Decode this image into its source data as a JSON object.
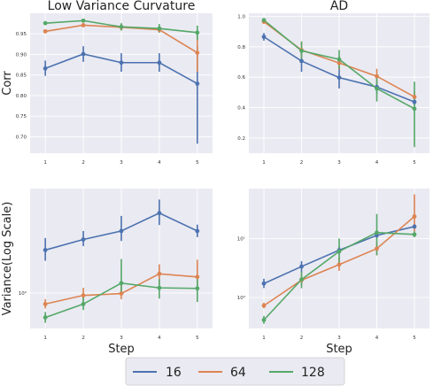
{
  "legend": {
    "entries": [
      {
        "label": "16",
        "color": "#4c72b0"
      },
      {
        "label": "64",
        "color": "#dd8452"
      },
      {
        "label": "128",
        "color": "#55a868"
      }
    ]
  },
  "chart_data": [
    {
      "id": "p1",
      "type": "line",
      "title": "Low Variance Curvature",
      "xlabel": "",
      "ylabel": "Corr",
      "x": [
        1,
        2,
        3,
        4,
        5
      ],
      "xlim": [
        0.6,
        5.4
      ],
      "ylim": [
        0.66,
        1.0
      ],
      "yscale": "linear",
      "yticks": [
        0.7,
        0.75,
        0.8,
        0.85,
        0.9,
        0.95
      ],
      "ytick_labels": [
        "0.70",
        "0.75",
        "0.80",
        "0.85",
        "0.90",
        "0.95"
      ],
      "grid": true,
      "series": [
        {
          "name": "16",
          "color": "#4c72b0",
          "values": [
            0.866,
            0.901,
            0.88,
            0.88,
            0.829
          ],
          "err_low": [
            0.848,
            0.882,
            0.858,
            0.858,
            0.683
          ],
          "err_high": [
            0.885,
            0.92,
            0.903,
            0.903,
            0.92
          ]
        },
        {
          "name": "64",
          "color": "#dd8452",
          "values": [
            0.956,
            0.971,
            0.966,
            0.96,
            0.904
          ],
          "err_low": [
            0.952,
            0.966,
            0.958,
            0.953,
            0.858
          ],
          "err_high": [
            0.96,
            0.976,
            0.974,
            0.967,
            0.948
          ]
        },
        {
          "name": "128",
          "color": "#55a868",
          "values": [
            0.976,
            0.982,
            0.967,
            0.963,
            0.953
          ],
          "err_low": [
            0.973,
            0.978,
            0.958,
            0.953,
            0.935
          ],
          "err_high": [
            0.979,
            0.986,
            0.976,
            0.974,
            0.97
          ]
        }
      ]
    },
    {
      "id": "p2",
      "type": "line",
      "title": "AD",
      "xlabel": "",
      "ylabel": "",
      "x": [
        1,
        2,
        3,
        4,
        5
      ],
      "xlim": [
        0.6,
        5.4
      ],
      "ylim": [
        0.1,
        1.02
      ],
      "yscale": "linear",
      "yticks": [
        0.2,
        0.4,
        0.6,
        0.8,
        1.0
      ],
      "ytick_labels": [
        "0.2",
        "0.4",
        "0.6",
        "0.8",
        "1.0"
      ],
      "grid": true,
      "series": [
        {
          "name": "16",
          "color": "#4c72b0",
          "values": [
            0.865,
            0.706,
            0.597,
            0.535,
            0.437
          ],
          "err_low": [
            0.84,
            0.635,
            0.525,
            0.49,
            0.41
          ],
          "err_high": [
            0.89,
            0.772,
            0.665,
            0.58,
            0.465
          ]
        },
        {
          "name": "64",
          "color": "#dd8452",
          "values": [
            0.965,
            0.778,
            0.693,
            0.606,
            0.47
          ],
          "err_low": [
            0.95,
            0.728,
            0.648,
            0.555,
            0.44
          ],
          "err_high": [
            0.98,
            0.83,
            0.74,
            0.655,
            0.5
          ]
        },
        {
          "name": "128",
          "color": "#55a868",
          "values": [
            0.975,
            0.773,
            0.717,
            0.525,
            0.392
          ],
          "err_low": [
            0.962,
            0.72,
            0.652,
            0.44,
            0.14
          ],
          "err_high": [
            0.988,
            0.835,
            0.778,
            0.595,
            0.57
          ]
        }
      ]
    },
    {
      "id": "p3",
      "type": "line",
      "title": "",
      "xlabel": "Step",
      "ylabel": "Variance(Log Scale)",
      "x": [
        1,
        2,
        3,
        4,
        5
      ],
      "xlim": [
        0.6,
        5.4
      ],
      "ylim": [
        0.55,
        5.8
      ],
      "yscale": "log",
      "yticks": [
        1
      ],
      "ytick_labels": [
        "10⁰"
      ],
      "grid": true,
      "series": [
        {
          "name": "16",
          "color": "#4c72b0",
          "values": [
            2.06,
            2.46,
            2.84,
            3.84,
            2.84
          ],
          "err_low": [
            1.72,
            2.2,
            2.4,
            3.14,
            2.56
          ],
          "err_high": [
            2.52,
            2.84,
            3.66,
            4.82,
            3.16
          ]
        },
        {
          "name": "64",
          "color": "#dd8452",
          "values": [
            0.83,
            0.96,
            0.99,
            1.38,
            1.31
          ],
          "err_low": [
            0.77,
            0.87,
            0.9,
            1.16,
            1.03
          ],
          "err_high": [
            0.9,
            1.09,
            1.17,
            1.62,
            1.75
          ]
        },
        {
          "name": "128",
          "color": "#55a868",
          "values": [
            0.662,
            0.83,
            1.18,
            1.09,
            1.08
          ],
          "err_low": [
            0.605,
            0.75,
            0.96,
            0.91,
            0.86
          ],
          "err_high": [
            0.725,
            0.94,
            1.77,
            1.26,
            1.26
          ]
        }
      ]
    },
    {
      "id": "p4",
      "type": "line",
      "title": "",
      "xlabel": "Step",
      "ylabel": "",
      "x": [
        1,
        2,
        3,
        4,
        5
      ],
      "xlim": [
        0.6,
        5.4
      ],
      "ylim": [
        0.3,
        70
      ],
      "yscale": "log",
      "yticks": [
        1,
        10
      ],
      "ytick_labels": [
        "10⁰",
        "10¹"
      ],
      "grid": true,
      "series": [
        {
          "name": "16",
          "color": "#4c72b0",
          "values": [
            1.73,
            3.35,
            6.34,
            11.3,
            15.9
          ],
          "err_low": [
            1.45,
            2.64,
            5.3,
            9.9,
            14.5
          ],
          "err_high": [
            2.08,
            4.13,
            7.41,
            13.0,
            17.6
          ]
        },
        {
          "name": "64",
          "color": "#dd8452",
          "values": [
            0.73,
            1.97,
            3.62,
            6.73,
            23.6
          ],
          "err_low": [
            0.66,
            1.65,
            2.84,
            5.2,
            13.0
          ],
          "err_high": [
            0.82,
            2.49,
            4.83,
            8.75,
            56.0
          ]
        },
        {
          "name": "128",
          "color": "#55a868",
          "values": [
            0.418,
            2.02,
            6.05,
            12.6,
            11.7
          ],
          "err_low": [
            0.36,
            1.44,
            3.81,
            5.2,
            10.5
          ],
          "err_high": [
            0.49,
            2.76,
            10.0,
            26.0,
            13.2
          ]
        }
      ]
    }
  ]
}
